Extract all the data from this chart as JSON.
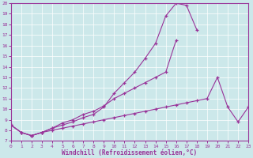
{
  "xlabel": "Windchill (Refroidissement éolien,°C)",
  "bg_color": "#cce8ea",
  "line_color": "#993399",
  "xlim": [
    0,
    23
  ],
  "ylim": [
    7,
    20
  ],
  "xticks": [
    0,
    1,
    2,
    3,
    4,
    5,
    6,
    7,
    8,
    9,
    10,
    11,
    12,
    13,
    14,
    15,
    16,
    17,
    18,
    19,
    20,
    21,
    22,
    23
  ],
  "yticks": [
    7,
    8,
    9,
    10,
    11,
    12,
    13,
    14,
    15,
    16,
    17,
    18,
    19,
    20
  ],
  "curve_peak_x": [
    0,
    1,
    2,
    3,
    4,
    5,
    6,
    7,
    8,
    9,
    10,
    11,
    12,
    13,
    14,
    15,
    16,
    17,
    18,
    21,
    22,
    23
  ],
  "curve_peak_y": [
    8.5,
    7.8,
    7.5,
    7.8,
    8.2,
    8.5,
    8.8,
    9.2,
    9.5,
    10.2,
    11.5,
    12.5,
    13.5,
    14.8,
    16.2,
    18.8,
    20.0,
    19.8,
    17.5,
    null,
    null,
    null
  ],
  "curve_mid_x": [
    0,
    1,
    2,
    3,
    4,
    5,
    6,
    7,
    8,
    9,
    10,
    11,
    12,
    13,
    14,
    15,
    16,
    17,
    18,
    19,
    20,
    21,
    22,
    23
  ],
  "curve_mid_y": [
    8.5,
    7.8,
    7.5,
    7.8,
    8.2,
    8.7,
    9.0,
    9.5,
    9.8,
    10.3,
    11.0,
    11.5,
    12.0,
    12.5,
    13.0,
    13.5,
    16.5,
    null,
    null,
    null,
    null,
    null,
    null,
    null
  ],
  "curve_low_x": [
    0,
    1,
    2,
    3,
    4,
    5,
    6,
    7,
    8,
    9,
    10,
    11,
    12,
    13,
    14,
    15,
    16,
    17,
    18,
    19,
    20,
    21,
    22,
    23
  ],
  "curve_low_y": [
    8.5,
    7.8,
    7.5,
    7.8,
    8.0,
    8.2,
    8.4,
    8.6,
    8.8,
    9.0,
    9.2,
    9.4,
    9.6,
    9.8,
    10.0,
    10.2,
    10.4,
    10.6,
    10.8,
    11.0,
    13.0,
    10.2,
    8.8,
    10.2
  ]
}
